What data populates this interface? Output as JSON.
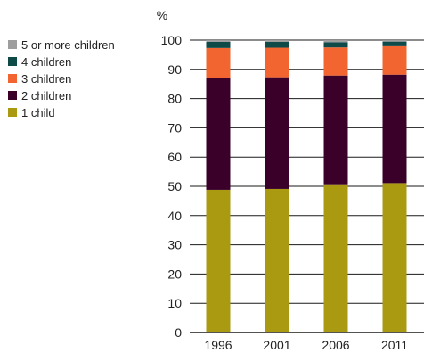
{
  "chart_data": {
    "type": "bar",
    "stacked": true,
    "categories": [
      "1996",
      "2001",
      "2006",
      "2011"
    ],
    "ylabel": "%",
    "ylim": [
      0,
      100
    ],
    "yticks": [
      0,
      10,
      20,
      30,
      40,
      50,
      60,
      70,
      80,
      90,
      100
    ],
    "grid": true,
    "legend_position": "left",
    "series": [
      {
        "name": "1 child",
        "color": "#a99a12",
        "values": [
          48.8,
          49.1,
          50.7,
          51.1
        ]
      },
      {
        "name": "2 children",
        "color": "#3b0029",
        "values": [
          38.2,
          38.2,
          37.2,
          37.1
        ]
      },
      {
        "name": "3 children",
        "color": "#f26531",
        "values": [
          10.3,
          10.1,
          9.6,
          9.7
        ]
      },
      {
        "name": "4 children",
        "color": "#0e4a48",
        "values": [
          2.1,
          2.0,
          1.8,
          1.6
        ]
      },
      {
        "name": "5 or more children",
        "color": "#9e9e9e",
        "values": [
          0.6,
          0.6,
          0.7,
          0.5
        ]
      }
    ],
    "legend_order": [
      "5 or more children",
      "4 children",
      "3 children",
      "2 children",
      "1 child"
    ]
  }
}
